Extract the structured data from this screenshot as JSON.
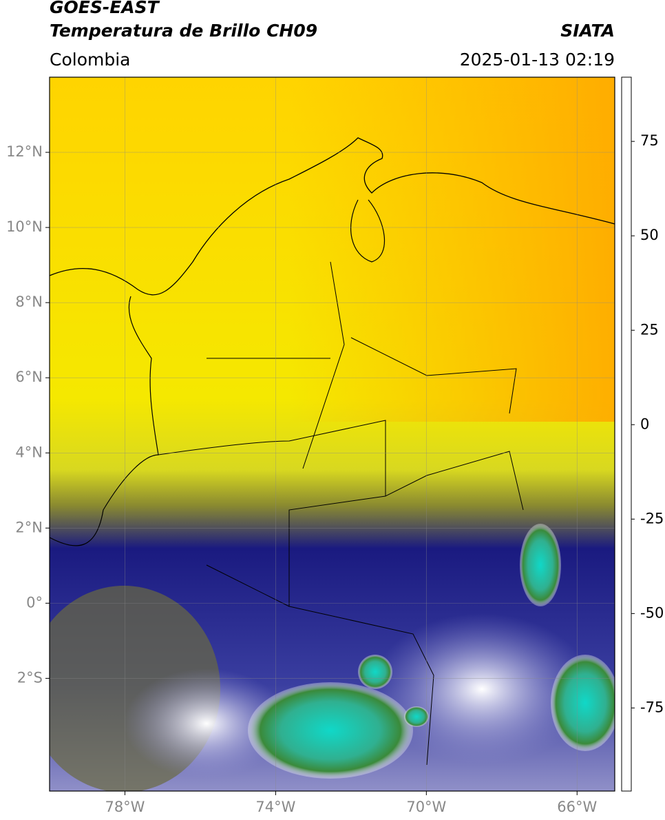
{
  "header": {
    "title": "GOES-EAST",
    "subtitle": "Temperatura de Brillo CH09",
    "region": "Colombia",
    "source": "SIATA",
    "timestamp": "2025-01-13 02:19"
  },
  "map": {
    "lon_range": [
      -80,
      -65
    ],
    "lat_range": [
      -5,
      14
    ],
    "xticks": [
      {
        "value": -78,
        "label": "78°W"
      },
      {
        "value": -74,
        "label": "74°W"
      },
      {
        "value": -70,
        "label": "70°W"
      },
      {
        "value": -66,
        "label": "66°W"
      }
    ],
    "yticks": [
      {
        "value": 12,
        "label": "12°N"
      },
      {
        "value": 10,
        "label": "10°N"
      },
      {
        "value": 8,
        "label": "8°N"
      },
      {
        "value": 6,
        "label": "6°N"
      },
      {
        "value": 4,
        "label": "4°N"
      },
      {
        "value": 2,
        "label": "2°N"
      },
      {
        "value": 0,
        "label": "0°"
      },
      {
        "value": -2,
        "label": "2°S"
      }
    ]
  },
  "colorbar": {
    "range": [
      -97,
      92
    ],
    "ticks": [
      75,
      50,
      25,
      0,
      -25,
      -50,
      -75
    ],
    "stops": [
      {
        "value": -97,
        "color": "#ffffff"
      },
      {
        "value": -93,
        "color": "#ffffff"
      },
      {
        "value": -92,
        "color": "#00e5e5"
      },
      {
        "value": -80,
        "color": "#20b090"
      },
      {
        "value": -63,
        "color": "#2e7d2e"
      },
      {
        "value": -55,
        "color": "#a8d0a0"
      },
      {
        "value": -50,
        "color": "#ffffff"
      },
      {
        "value": -40,
        "color": "#8a8ad0"
      },
      {
        "value": -28,
        "color": "#0a0a80"
      },
      {
        "value": -22,
        "color": "#555530"
      },
      {
        "value": -16,
        "color": "#b0b020"
      },
      {
        "value": -10,
        "color": "#f5f000"
      },
      {
        "value": 0,
        "color": "#ff9000"
      },
      {
        "value": 8,
        "color": "#ff1000"
      },
      {
        "value": 8,
        "color": "#000000"
      },
      {
        "value": 92,
        "color": "#000000"
      }
    ]
  }
}
